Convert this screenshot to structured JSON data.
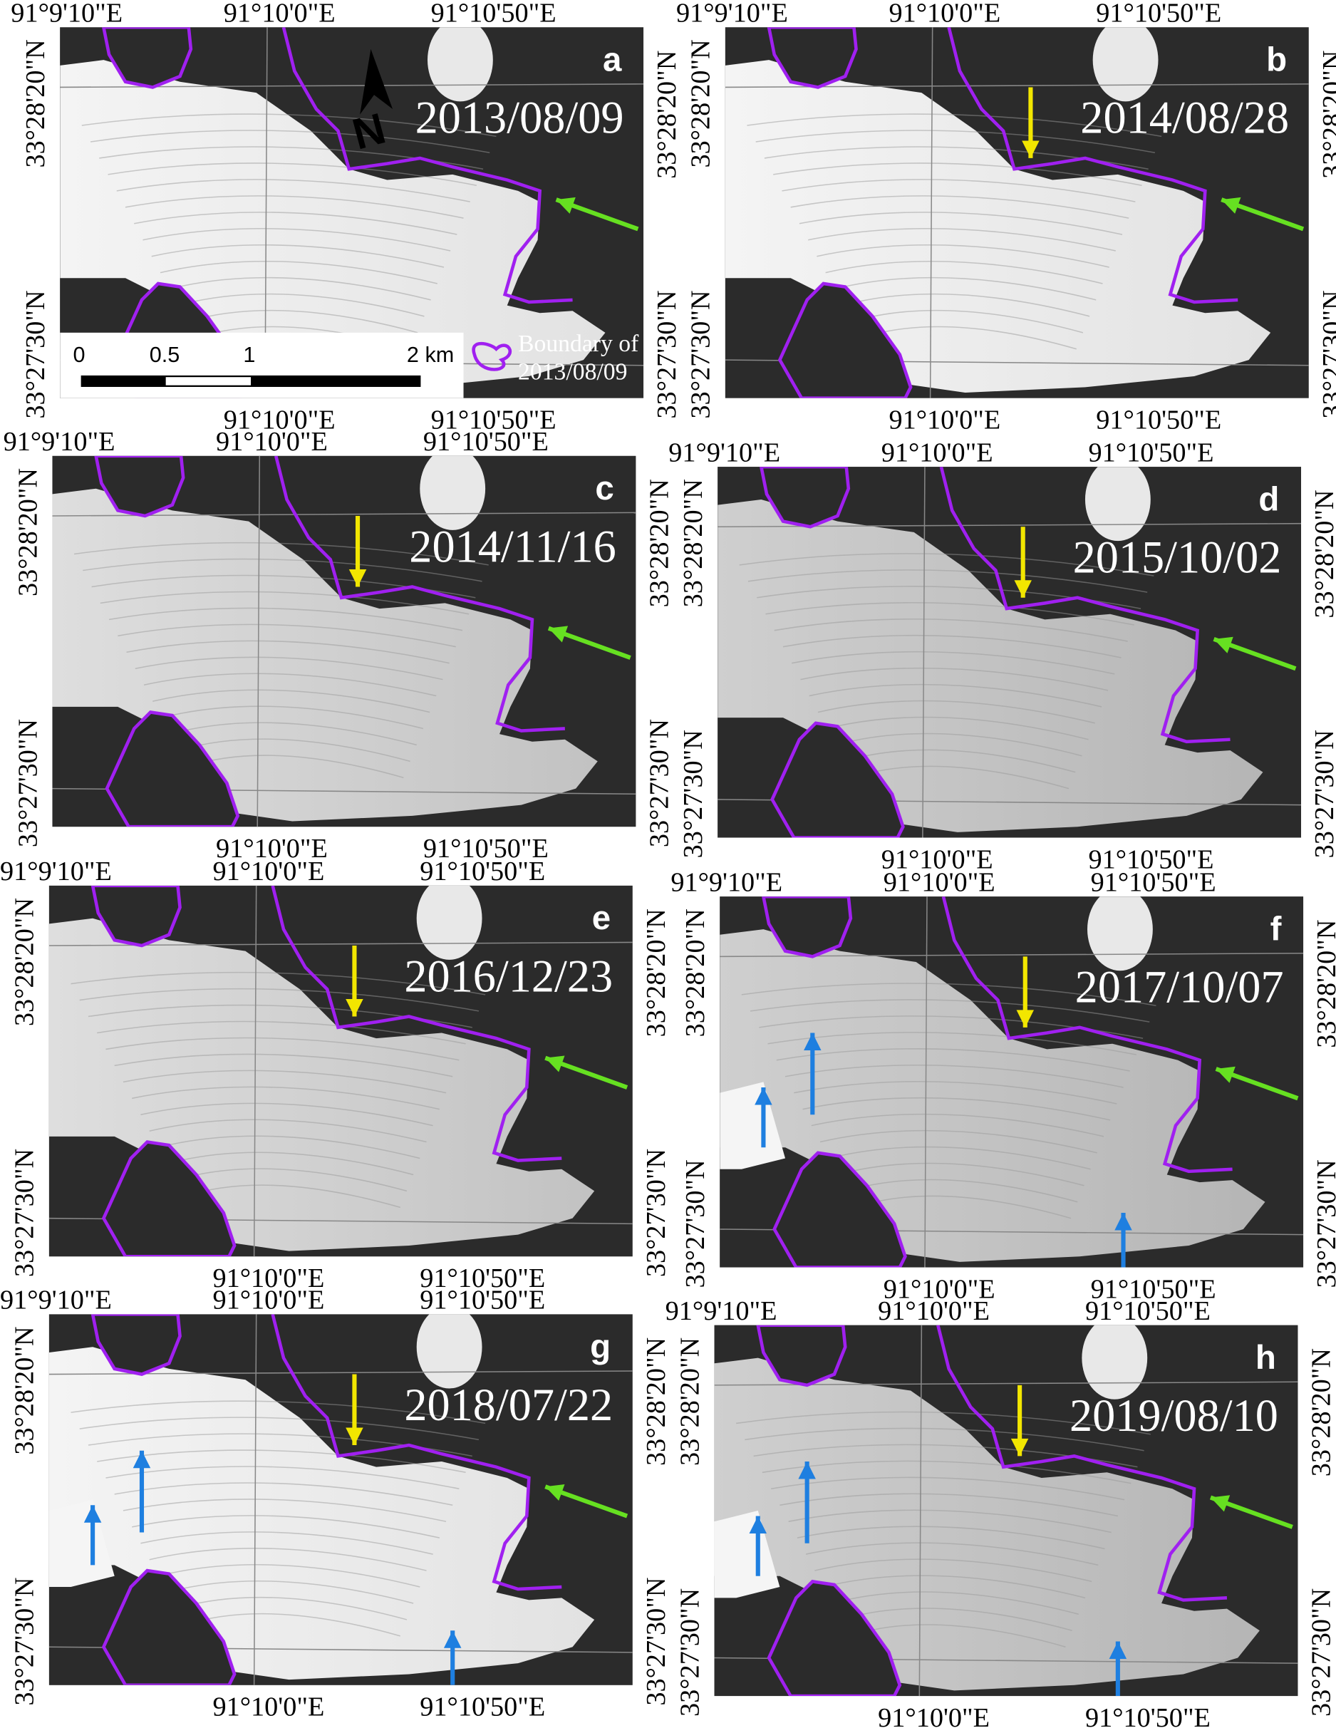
{
  "coords": {
    "lon_left": "91°9'10\"E",
    "lon_mid": "91°10'0\"E",
    "lon_right": "91°10'50\"E",
    "lat_top": "33°28'20\"N",
    "lat_bottom": "33°27'30\"N"
  },
  "panels": [
    {
      "letter": "a",
      "date": "2013/08/09",
      "yellow": false,
      "blue": false
    },
    {
      "letter": "b",
      "date": "2014/08/28",
      "yellow": true,
      "blue": false
    },
    {
      "letter": "c",
      "date": "2014/11/16",
      "yellow": true,
      "blue": false
    },
    {
      "letter": "d",
      "date": "2015/10/02",
      "yellow": true,
      "blue": false
    },
    {
      "letter": "e",
      "date": "2016/12/23",
      "yellow": true,
      "blue": false
    },
    {
      "letter": "f",
      "date": "2017/10/07",
      "yellow": true,
      "blue": true
    },
    {
      "letter": "g",
      "date": "2018/07/22",
      "yellow": true,
      "blue": true
    },
    {
      "letter": "h",
      "date": "2019/08/10",
      "yellow": true,
      "blue": true
    }
  ],
  "scalebar": {
    "t0": "0",
    "t1": "0.5",
    "t2": "1",
    "t3": "2 km"
  },
  "legend": {
    "line1": "Boundary of",
    "line2": "2013/08/09"
  },
  "north_label": "N",
  "colors": {
    "boundary": "#a020f0",
    "green_arrow": "#66e021",
    "yellow_arrow": "#f2e600",
    "blue_arrow": "#1e7fe0",
    "rock": "#2b2b2b"
  }
}
